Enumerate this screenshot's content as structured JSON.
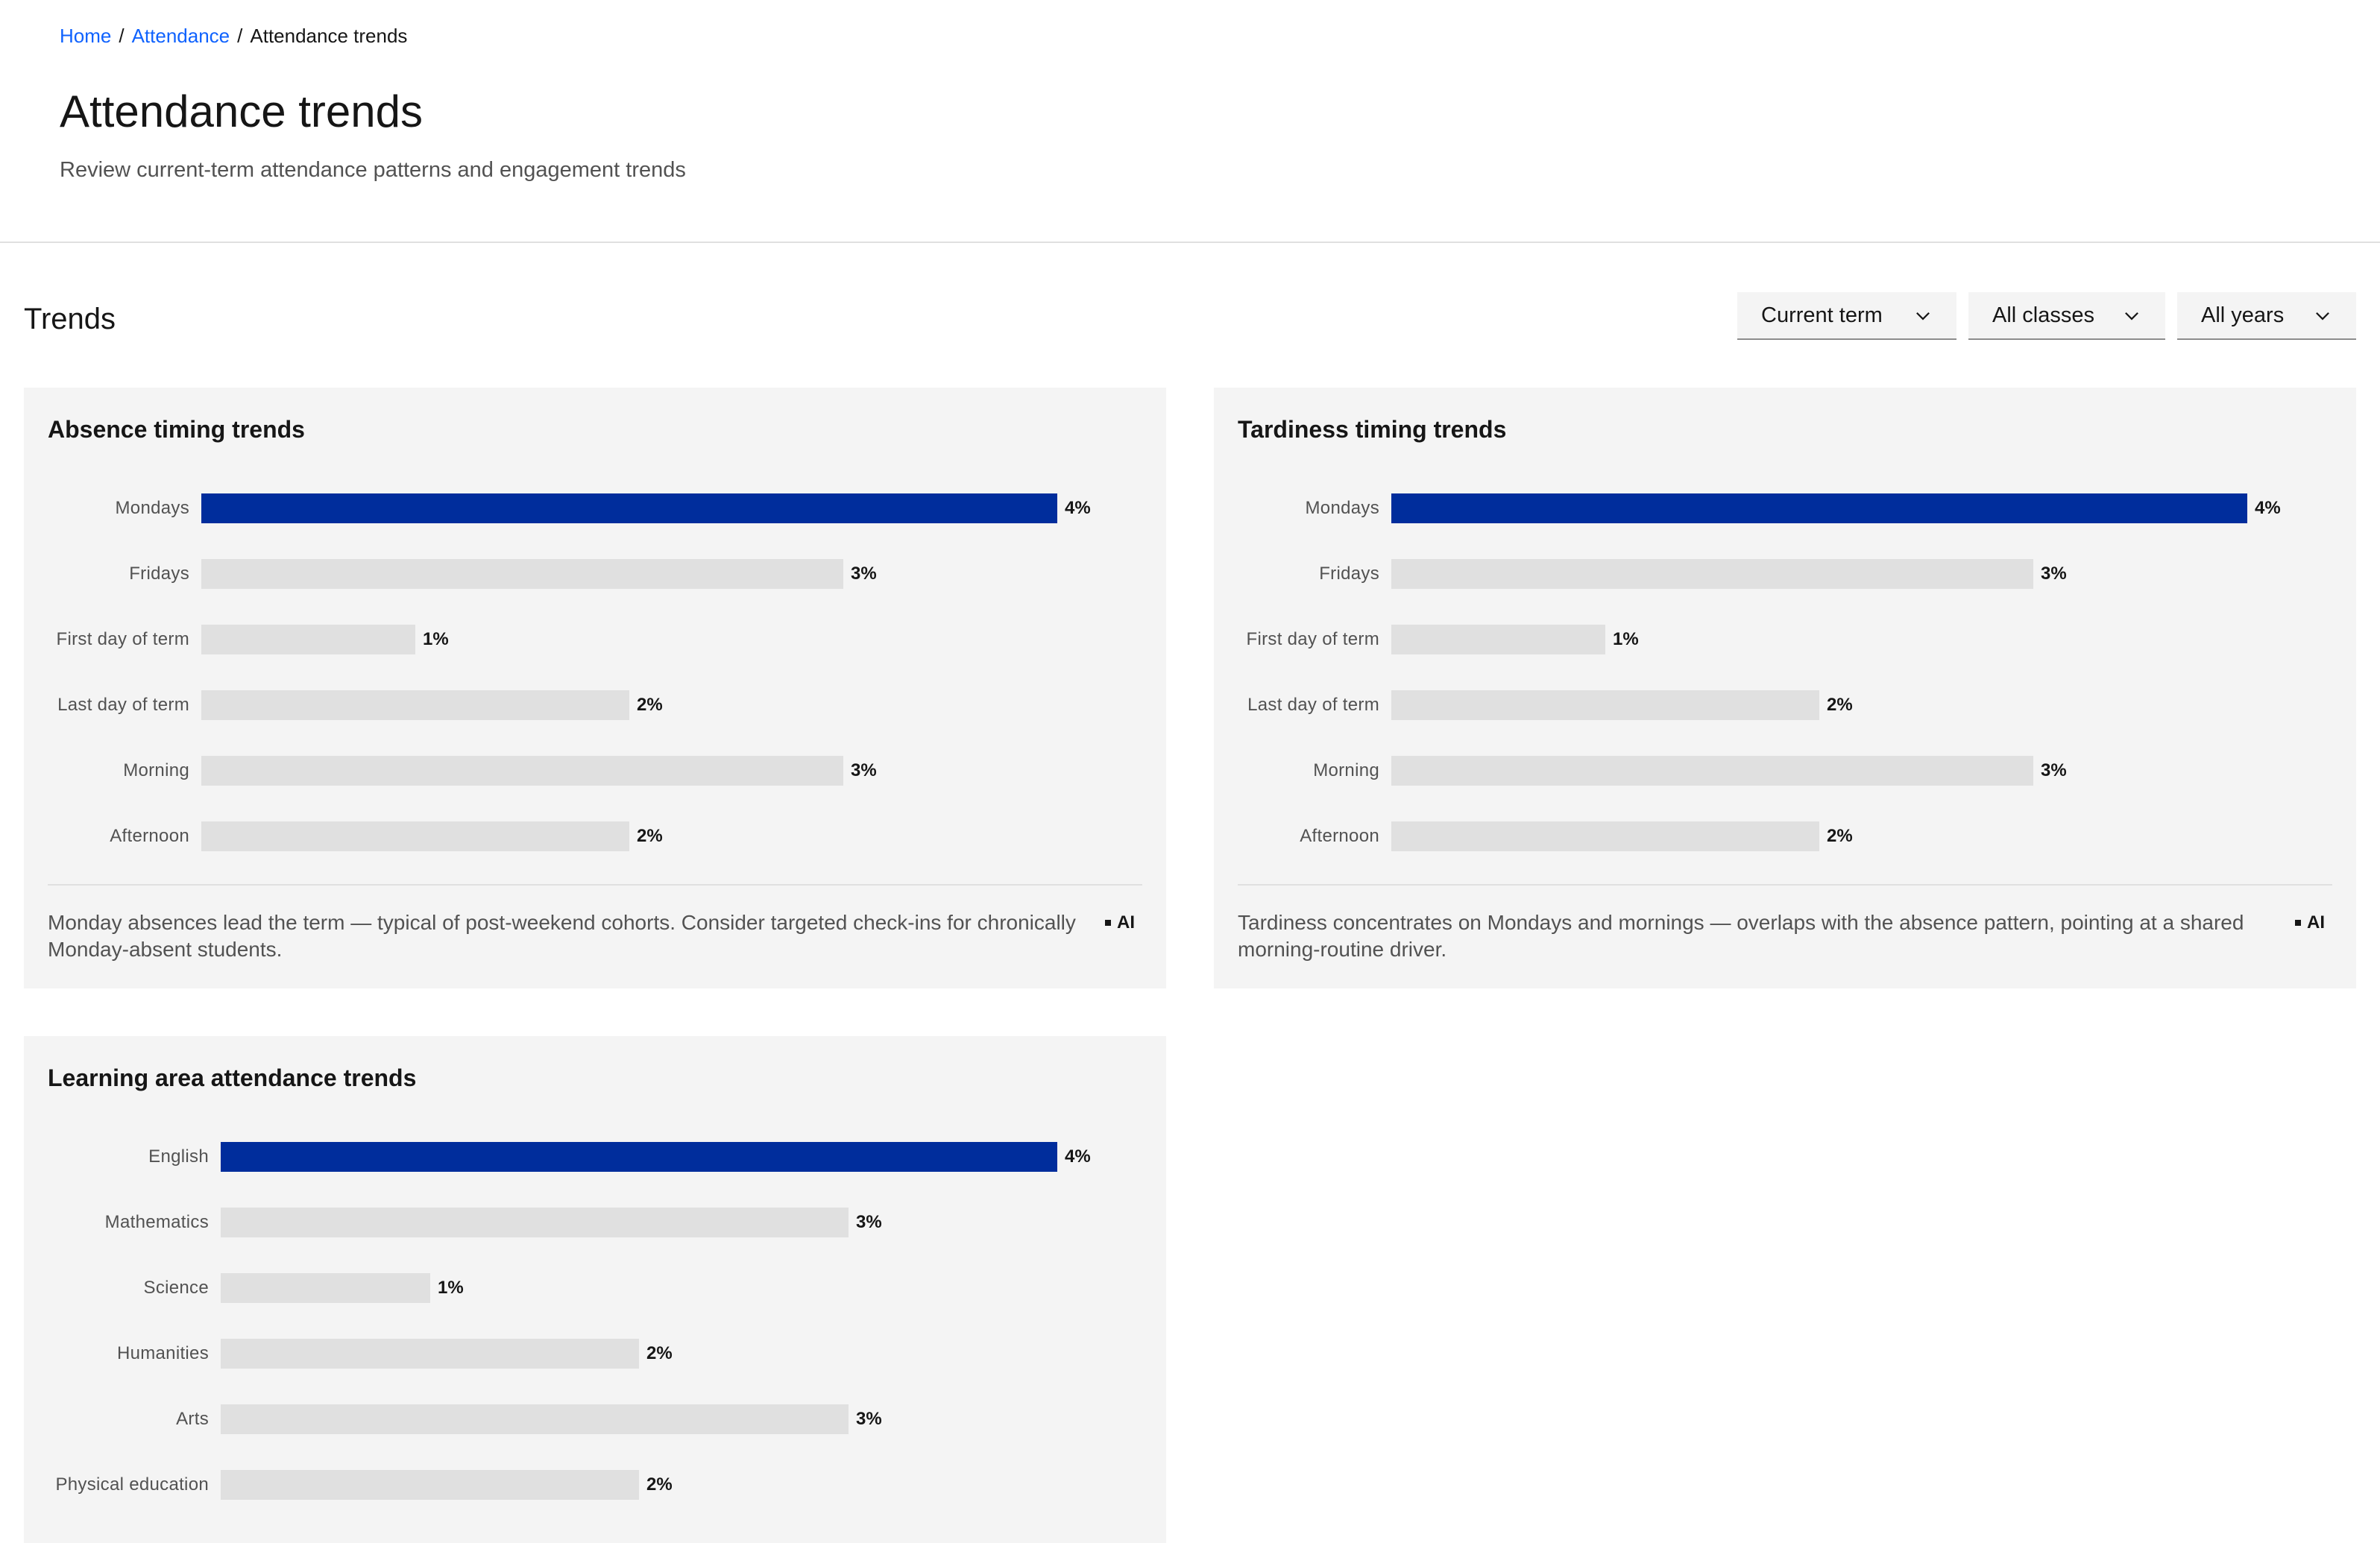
{
  "breadcrumb": {
    "items": [
      {
        "label": "Home"
      },
      {
        "label": "Attendance"
      }
    ],
    "separator": "/",
    "current": "Attendance trends"
  },
  "header": {
    "title": "Attendance trends",
    "subtitle": "Review current-term attendance patterns and engagement trends"
  },
  "section": {
    "title": "Trends"
  },
  "filters": {
    "term": "Current term",
    "classes": "All classes",
    "years": "All years",
    "chevron_icon": "chevron-down-icon"
  },
  "colors": {
    "highlight_bar": "#002d9c",
    "default_bar": "#e0e0e0",
    "link": "#0f62fe",
    "card_bg": "#f4f4f4"
  },
  "cards": {
    "absence": {
      "title": "Absence timing trends",
      "insight": "Monday absences lead the term — typical of post-weekend cohorts. Consider targeted check-ins for chronically Monday-absent students.",
      "ai_label": "AI"
    },
    "tardiness": {
      "title": "Tardiness timing trends",
      "insight": "Tardiness concentrates on Mondays and mornings — overlaps with the absence pattern, pointing at a shared morning-routine driver.",
      "ai_label": "AI"
    },
    "learning": {
      "title": "Learning area attendance trends"
    }
  },
  "chart_data": [
    {
      "type": "bar",
      "orientation": "horizontal",
      "title": "Absence timing trends",
      "categories": [
        "Mondays",
        "Fridays",
        "First day of term",
        "Last day of term",
        "Morning",
        "Afternoon"
      ],
      "values": [
        4,
        3,
        1,
        2,
        3,
        2
      ],
      "value_labels": [
        "4%",
        "3%",
        "1%",
        "2%",
        "3%",
        "2%"
      ],
      "highlight_index": 0,
      "xlim": [
        0,
        4
      ]
    },
    {
      "type": "bar",
      "orientation": "horizontal",
      "title": "Tardiness timing trends",
      "categories": [
        "Mondays",
        "Fridays",
        "First day of term",
        "Last day of term",
        "Morning",
        "Afternoon"
      ],
      "values": [
        4,
        3,
        1,
        2,
        3,
        2
      ],
      "value_labels": [
        "4%",
        "3%",
        "1%",
        "2%",
        "3%",
        "2%"
      ],
      "highlight_index": 0,
      "xlim": [
        0,
        4
      ]
    },
    {
      "type": "bar",
      "orientation": "horizontal",
      "title": "Learning area attendance trends",
      "categories": [
        "English",
        "Mathematics",
        "Science",
        "Humanities",
        "Arts",
        "Physical education"
      ],
      "values": [
        4,
        3,
        1,
        2,
        3,
        2
      ],
      "value_labels": [
        "4%",
        "3%",
        "1%",
        "2%",
        "3%",
        "2%"
      ],
      "highlight_index": 0,
      "xlim": [
        0,
        4
      ]
    }
  ]
}
